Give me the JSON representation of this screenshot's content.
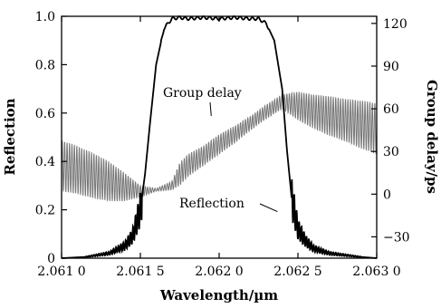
{
  "chart_data": {
    "type": "line",
    "title": "",
    "xlabel": "Wavelength/µm",
    "ylabel_left": "Reflection",
    "ylabel_right": "Group delay/ps",
    "xlim": [
      2.061,
      2.063
    ],
    "ylim_left": [
      0,
      1.0
    ],
    "ylim_right": [
      -45,
      125
    ],
    "x_ticks": [
      "2.061 0",
      "2.061 5",
      "2.062 0",
      "2.062 5",
      "2.063 0"
    ],
    "y_left_ticks": [
      "0",
      "0.2",
      "0.4",
      "0.6",
      "0.8",
      "1.0"
    ],
    "y_right_ticks": [
      "−30",
      "0",
      "30",
      "60",
      "90",
      "120"
    ],
    "grid": false,
    "annotations": [
      {
        "text": "Group delay",
        "target": "group_delay",
        "x": 2.06195,
        "y_right": 55
      },
      {
        "text": "Reflection",
        "target": "reflection",
        "x": 2.06237,
        "y_left": 0.2
      }
    ],
    "series": [
      {
        "name": "Reflection",
        "axis": "left",
        "color": "#000000",
        "x": [
          2.061,
          2.06115,
          2.0613,
          2.0614,
          2.06145,
          2.0615,
          2.06153,
          2.06156,
          2.0616,
          2.06165,
          2.0617,
          2.06175,
          2.0618,
          2.0619,
          2.062,
          2.0621,
          2.0622,
          2.06225,
          2.0623,
          2.06235,
          2.0624,
          2.06243,
          2.06246,
          2.0625,
          2.06255,
          2.0626,
          2.0627,
          2.0629,
          2.063
        ],
        "y": [
          0.0,
          0.005,
          0.02,
          0.05,
          0.09,
          0.2,
          0.35,
          0.55,
          0.8,
          0.95,
          0.99,
          0.995,
          0.99,
          0.995,
          0.99,
          0.995,
          0.99,
          0.99,
          0.97,
          0.9,
          0.7,
          0.45,
          0.25,
          0.12,
          0.07,
          0.04,
          0.02,
          0.005,
          0.0
        ]
      },
      {
        "name": "Group delay",
        "axis": "right",
        "color": "#777777",
        "x": [
          2.061,
          2.0611,
          2.0612,
          2.0613,
          2.0614,
          2.0615,
          2.0616,
          2.0617,
          2.06175,
          2.0618,
          2.0619,
          2.062,
          2.0621,
          2.0622,
          2.0623,
          2.0624,
          2.0625,
          2.0626,
          2.0627,
          2.0628,
          2.0629,
          2.063
        ],
        "y": [
          20,
          17,
          13,
          9,
          5,
          2,
          3,
          6,
          14,
          20,
          27,
          35,
          42,
          50,
          58,
          65,
          62,
          58,
          55,
          52,
          49,
          46
        ],
        "oscillation_amplitude": [
          18,
          17,
          16,
          14,
          10,
          4,
          1,
          3,
          8,
          8,
          7,
          7,
          6,
          5,
          5,
          5,
          10,
          12,
          14,
          15,
          17,
          18
        ]
      }
    ]
  }
}
